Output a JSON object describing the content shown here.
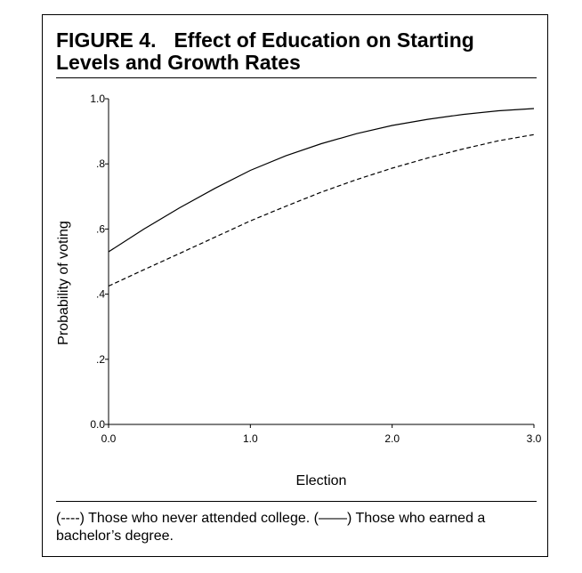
{
  "figure": {
    "number": "FIGURE 4.",
    "title": "Effect of Education on Starting Levels and Growth Rates",
    "caption": "(----) Those who never attended college. (——) Those who earned a bachelor’s degree."
  },
  "chart_data": {
    "type": "line",
    "xlabel": "Election",
    "ylabel": "Probability of voting",
    "xlim": [
      0,
      3
    ],
    "ylim": [
      0,
      1
    ],
    "x_ticks": [
      0,
      1,
      2,
      3
    ],
    "x_tick_labels": [
      "0.0",
      "1.0",
      "2.0",
      "3.0"
    ],
    "y_ticks": [
      0,
      0.2,
      0.4,
      0.6,
      0.8,
      1.0
    ],
    "y_tick_labels": [
      "0.0",
      ".2",
      ".4",
      ".6",
      ".8",
      "1.0"
    ],
    "grid": false,
    "series": [
      {
        "style": "solid",
        "x": [
          0,
          0.25,
          0.5,
          0.75,
          1.0,
          1.25,
          1.5,
          1.75,
          2.0,
          2.25,
          2.5,
          2.75,
          3.0
        ],
        "y": [
          0.53,
          0.6,
          0.665,
          0.725,
          0.78,
          0.825,
          0.862,
          0.893,
          0.918,
          0.937,
          0.952,
          0.963,
          0.97
        ]
      },
      {
        "style": "dashed",
        "x": [
          0,
          0.25,
          0.5,
          0.75,
          1.0,
          1.25,
          1.5,
          1.75,
          2.0,
          2.25,
          2.5,
          2.75,
          3.0
        ],
        "y": [
          0.425,
          0.475,
          0.525,
          0.575,
          0.625,
          0.67,
          0.713,
          0.752,
          0.787,
          0.818,
          0.846,
          0.871,
          0.89
        ]
      }
    ]
  }
}
